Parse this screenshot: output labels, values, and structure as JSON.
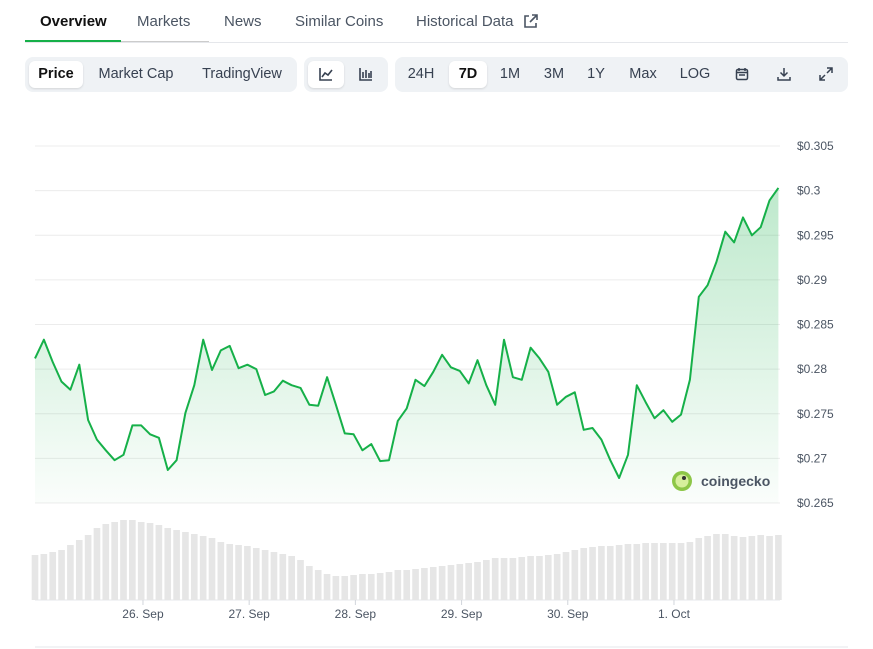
{
  "tabs": [
    "Overview",
    "Markets",
    "News",
    "Similar Coins",
    "Historical Data"
  ],
  "active_tab": 0,
  "chart_modes": [
    "Price",
    "Market Cap",
    "TradingView"
  ],
  "active_mode": 0,
  "ranges": [
    "24H",
    "7D",
    "1M",
    "3M",
    "1Y",
    "Max",
    "LOG"
  ],
  "active_range": 1,
  "watermark": "coingecko",
  "chart_data": {
    "type": "line",
    "color": "#16b049",
    "grid": true,
    "xlim": [
      0,
      168
    ],
    "xticks": [
      {
        "value": 24.4,
        "label": "26. Sep"
      },
      {
        "value": 48.4,
        "label": "27. Sep"
      },
      {
        "value": 72.4,
        "label": "28. Sep"
      },
      {
        "value": 96.4,
        "label": "29. Sep"
      },
      {
        "value": 120.4,
        "label": "30. Sep"
      },
      {
        "value": 144.4,
        "label": "1. Oct"
      }
    ],
    "ylim": [
      0.265,
      0.305
    ],
    "yticks": [
      {
        "value": 0.265,
        "label": "$0.265"
      },
      {
        "value": 0.27,
        "label": "$0.27"
      },
      {
        "value": 0.275,
        "label": "$0.275"
      },
      {
        "value": 0.28,
        "label": "$0.28"
      },
      {
        "value": 0.285,
        "label": "$0.285"
      },
      {
        "value": 0.29,
        "label": "$0.29"
      },
      {
        "value": 0.295,
        "label": "$0.295"
      },
      {
        "value": 0.3,
        "label": "$0.3"
      },
      {
        "value": 0.305,
        "label": "$0.305"
      }
    ],
    "values": [
      0.2812,
      0.2833,
      0.2808,
      0.2786,
      0.2777,
      0.2805,
      0.2743,
      0.2721,
      0.2709,
      0.2698,
      0.2704,
      0.2737,
      0.2737,
      0.2727,
      0.2723,
      0.2687,
      0.2698,
      0.2751,
      0.2782,
      0.2833,
      0.2799,
      0.2821,
      0.2826,
      0.2801,
      0.2805,
      0.28,
      0.2771,
      0.2775,
      0.2787,
      0.2782,
      0.2779,
      0.276,
      0.2759,
      0.2791,
      0.276,
      0.2728,
      0.2727,
      0.2709,
      0.2716,
      0.2697,
      0.2698,
      0.2742,
      0.2756,
      0.2788,
      0.2781,
      0.2797,
      0.2816,
      0.2802,
      0.2798,
      0.2784,
      0.281,
      0.2782,
      0.276,
      0.2833,
      0.2791,
      0.2788,
      0.2824,
      0.2812,
      0.2797,
      0.276,
      0.2769,
      0.2774,
      0.2732,
      0.2734,
      0.2721,
      0.2698,
      0.2678,
      0.2704,
      0.2782,
      0.2763,
      0.2745,
      0.2754,
      0.2741,
      0.2749,
      0.2788,
      0.2881,
      0.2894,
      0.292,
      0.2954,
      0.2942,
      0.297,
      0.295,
      0.2959,
      0.2989,
      0.3003
    ],
    "volume_color": "#e6e6e6",
    "volume_ylim": [
      0,
      100
    ],
    "volume": [
      45,
      46,
      48,
      50,
      55,
      60,
      65,
      72,
      76,
      78,
      80,
      80,
      78,
      77,
      75,
      72,
      70,
      68,
      66,
      64,
      62,
      58,
      56,
      55,
      54,
      52,
      50,
      48,
      46,
      44,
      40,
      34,
      30,
      26,
      24,
      24,
      25,
      26,
      26,
      27,
      28,
      30,
      30,
      31,
      32,
      33,
      34,
      35,
      36,
      37,
      38,
      40,
      42,
      42,
      42,
      43,
      44,
      44,
      45,
      46,
      48,
      50,
      52,
      53,
      54,
      54,
      55,
      56,
      56,
      57,
      57,
      57,
      57,
      57,
      58,
      62,
      64,
      66,
      66,
      64,
      63,
      64,
      65,
      64,
      65
    ]
  }
}
